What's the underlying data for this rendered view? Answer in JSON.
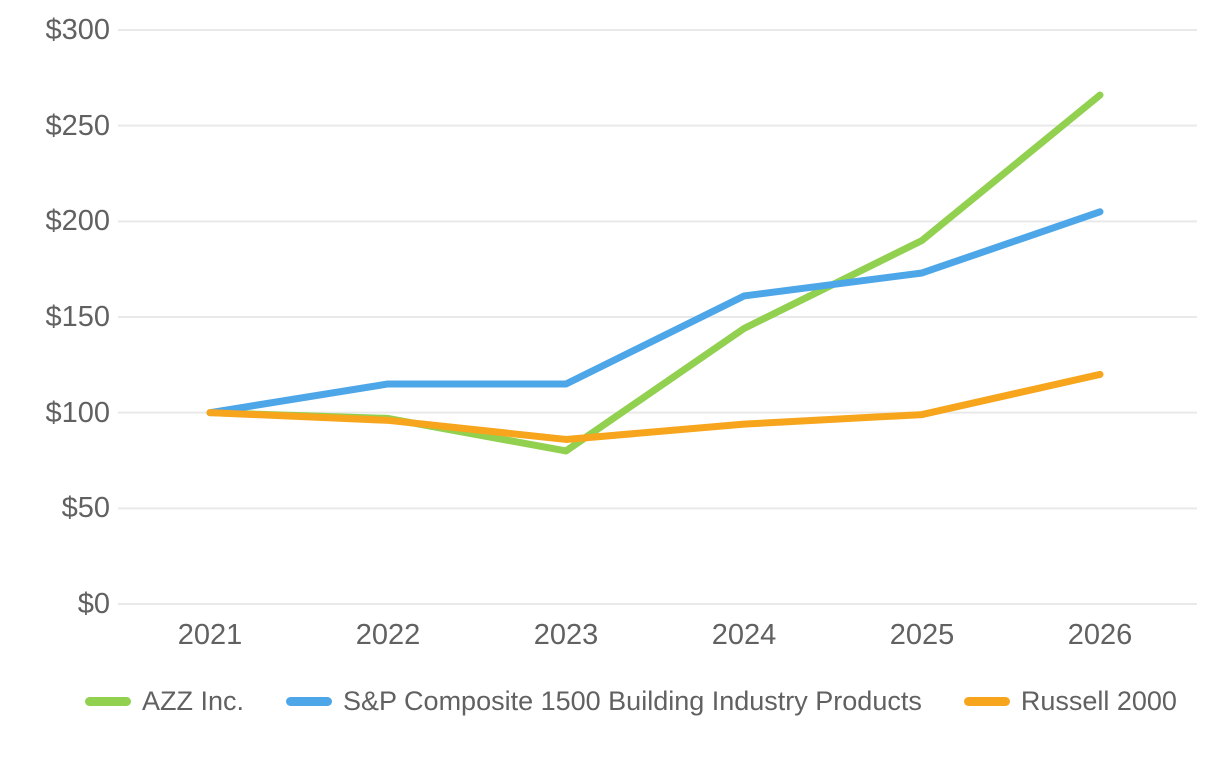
{
  "chart_data": {
    "type": "line",
    "title": "",
    "xlabel": "",
    "ylabel": "",
    "categories": [
      "2021",
      "2022",
      "2023",
      "2024",
      "2025",
      "2026"
    ],
    "series": [
      {
        "name": "AZZ Inc.",
        "color": "#92d050",
        "values": [
          100,
          97,
          80,
          144,
          190,
          266
        ]
      },
      {
        "name": "S&P Composite 1500 Building Industry Products",
        "color": "#4da6e8",
        "values": [
          100,
          115,
          115,
          161,
          173,
          205
        ]
      },
      {
        "name": "Russell 2000",
        "color": "#f7a51c",
        "values": [
          100,
          96,
          86,
          94,
          99,
          120
        ]
      }
    ],
    "ylim": [
      0,
      300
    ],
    "ytick_interval": 50,
    "ytick_labels": [
      "$0",
      "$50",
      "$100",
      "$150",
      "$200",
      "$250",
      "$300"
    ],
    "grid": "horizontal",
    "legend_position": "bottom"
  },
  "colors": {
    "background": "#ffffff",
    "gridline": "#e9e9e9",
    "axis_text": "#616161"
  }
}
